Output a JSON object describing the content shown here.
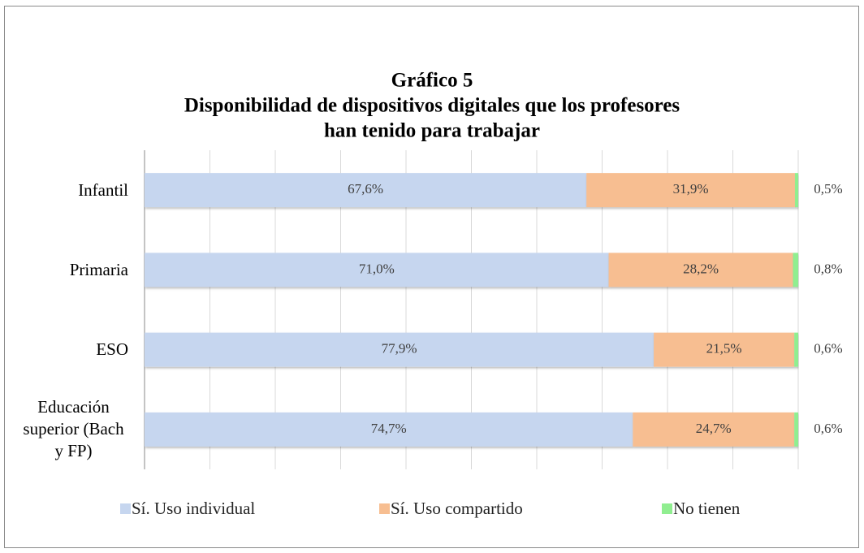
{
  "chart_data": {
    "type": "stacked_barh",
    "title_lines": [
      "Gráfico 5",
      "Disponibilidad de dispositivos digitales que los profesores",
      "han tenido para trabajar"
    ],
    "categories": [
      "Infantil",
      "Primaria",
      "ESO",
      "Educación superior (Bach y FP)"
    ],
    "series": [
      {
        "name": "Sí. Uso individual",
        "color": "#c6d6ef",
        "values": [
          67.6,
          71.0,
          77.9,
          74.7
        ],
        "value_labels": [
          "67,6%",
          "71,0%",
          "77,9%",
          "74,7%"
        ]
      },
      {
        "name": "Sí. Uso compartido",
        "color": "#f7be91",
        "values": [
          31.9,
          28.2,
          21.5,
          24.7
        ],
        "value_labels": [
          "31,9%",
          "28,2%",
          "21,5%",
          "24,7%"
        ]
      },
      {
        "name": "No tienen",
        "color": "#90ee90",
        "values": [
          0.5,
          0.8,
          0.6,
          0.6
        ],
        "value_labels": [
          "0,5%",
          "0,8%",
          "0,6%",
          "0,6%"
        ]
      }
    ],
    "xlim": [
      0,
      100
    ],
    "xticks": [
      0,
      10,
      20,
      30,
      40,
      50,
      60,
      70,
      80,
      90,
      100
    ],
    "grid": true,
    "legend": "bottom"
  }
}
